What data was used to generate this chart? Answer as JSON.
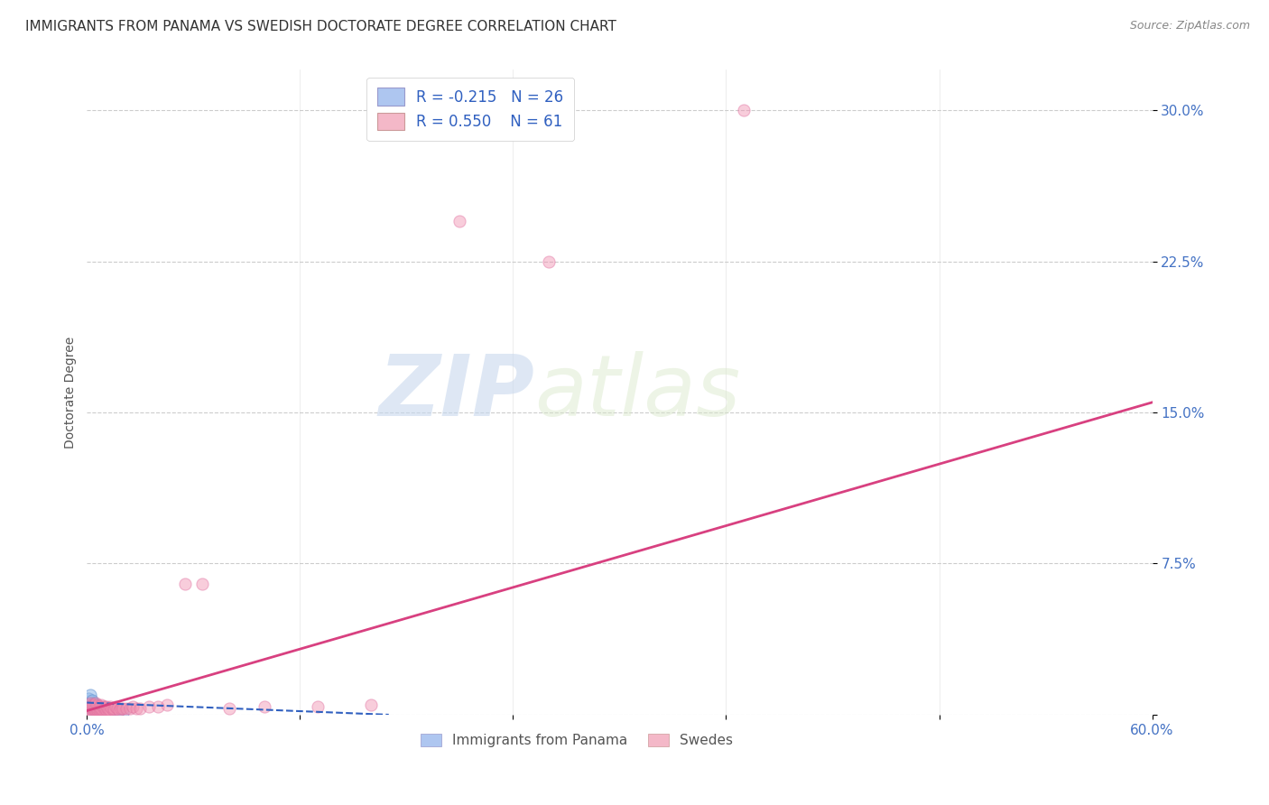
{
  "title": "IMMIGRANTS FROM PANAMA VS SWEDISH DOCTORATE DEGREE CORRELATION CHART",
  "source": "Source: ZipAtlas.com",
  "ylabel": "Doctorate Degree",
  "xlim": [
    0.0,
    0.6
  ],
  "ylim": [
    0.0,
    0.32
  ],
  "yticks": [
    0.0,
    0.075,
    0.15,
    0.225,
    0.3
  ],
  "ytick_labels": [
    "",
    "7.5%",
    "15.0%",
    "22.5%",
    "30.0%"
  ],
  "xtick_positions": [
    0.0,
    0.12,
    0.24,
    0.36,
    0.48,
    0.6
  ],
  "xtick_labels": [
    "0.0%",
    "",
    "",
    "",
    "",
    "60.0%"
  ],
  "legend_entries": [
    {
      "color": "#aec6f0",
      "R": "-0.215",
      "N": "26"
    },
    {
      "color": "#f4b8c8",
      "R": "0.550",
      "N": "61"
    }
  ],
  "legend_label1": "Immigrants from Panama",
  "legend_label2": "Swedes",
  "watermark_zip": "ZIP",
  "watermark_atlas": "atlas",
  "blue_scatter_x": [
    0.001,
    0.001,
    0.002,
    0.002,
    0.002,
    0.003,
    0.003,
    0.003,
    0.004,
    0.004,
    0.004,
    0.005,
    0.005,
    0.005,
    0.006,
    0.006,
    0.007,
    0.007,
    0.008,
    0.009,
    0.01,
    0.011,
    0.013,
    0.015,
    0.017,
    0.02
  ],
  "blue_scatter_y": [
    0.005,
    0.008,
    0.003,
    0.006,
    0.01,
    0.003,
    0.005,
    0.007,
    0.002,
    0.004,
    0.006,
    0.002,
    0.003,
    0.005,
    0.002,
    0.004,
    0.002,
    0.003,
    0.002,
    0.002,
    0.002,
    0.001,
    0.001,
    0.001,
    0.001,
    0.001
  ],
  "pink_scatter_x": [
    0.001,
    0.001,
    0.002,
    0.002,
    0.002,
    0.003,
    0.003,
    0.003,
    0.003,
    0.004,
    0.004,
    0.004,
    0.005,
    0.005,
    0.005,
    0.005,
    0.006,
    0.006,
    0.006,
    0.007,
    0.007,
    0.007,
    0.008,
    0.008,
    0.008,
    0.009,
    0.009,
    0.01,
    0.01,
    0.01,
    0.011,
    0.011,
    0.012,
    0.012,
    0.013,
    0.013,
    0.014,
    0.015,
    0.015,
    0.016,
    0.017,
    0.018,
    0.019,
    0.02,
    0.022,
    0.024,
    0.026,
    0.028,
    0.03,
    0.035,
    0.04,
    0.045,
    0.055,
    0.065,
    0.08,
    0.1,
    0.13,
    0.16,
    0.21,
    0.26,
    0.37
  ],
  "pink_scatter_y": [
    0.003,
    0.005,
    0.002,
    0.004,
    0.006,
    0.002,
    0.003,
    0.004,
    0.005,
    0.002,
    0.003,
    0.005,
    0.002,
    0.003,
    0.004,
    0.006,
    0.002,
    0.003,
    0.005,
    0.002,
    0.003,
    0.004,
    0.002,
    0.003,
    0.005,
    0.002,
    0.004,
    0.002,
    0.003,
    0.004,
    0.002,
    0.004,
    0.002,
    0.003,
    0.002,
    0.004,
    0.003,
    0.002,
    0.003,
    0.004,
    0.003,
    0.002,
    0.003,
    0.003,
    0.003,
    0.003,
    0.004,
    0.003,
    0.003,
    0.004,
    0.004,
    0.005,
    0.065,
    0.065,
    0.003,
    0.004,
    0.004,
    0.005,
    0.245,
    0.225,
    0.3
  ],
  "blue_line_x": [
    0.0,
    0.17
  ],
  "blue_line_y": [
    0.006,
    0.0
  ],
  "pink_line_x": [
    0.0,
    0.6
  ],
  "pink_line_y": [
    0.002,
    0.155
  ],
  "bg_color": "#ffffff",
  "grid_color": "#cccccc",
  "title_fontsize": 11,
  "axis_label_fontsize": 10,
  "tick_fontsize": 11
}
